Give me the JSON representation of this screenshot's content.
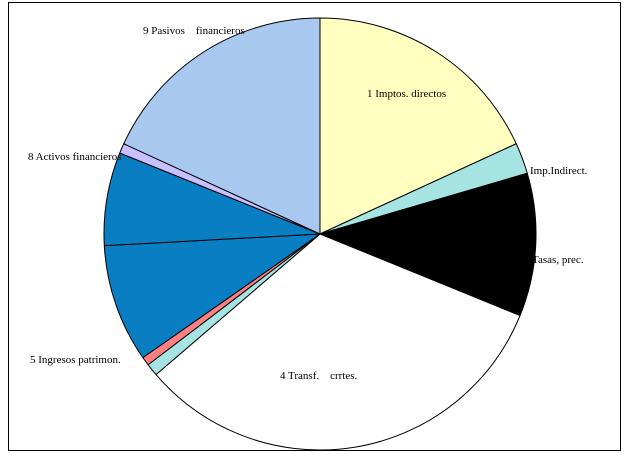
{
  "chart_data": {
    "type": "pie",
    "title": "",
    "legend": "none",
    "start_angle_deg": 0,
    "direction": "clockwise",
    "slices": [
      {
        "label": "1 Imptos. directos",
        "value": 19.5,
        "color": "#ffffc0"
      },
      {
        "label": "Imp.Indirect.",
        "value": 2.5,
        "color": "#a6e3e3"
      },
      {
        "label": "3 Tasas, prec.",
        "value": 11.5,
        "color": "#000000"
      },
      {
        "label": "4 Transf.    crrtes.",
        "value": 35.0,
        "color": "#ffffff"
      },
      {
        "label": "",
        "value": 1.0,
        "color": "#a6e3e3"
      },
      {
        "label": "5 Ingresos patrimon.",
        "value": 0.7,
        "color": "#ff8080"
      },
      {
        "label": "",
        "value": 9.5,
        "color": "#0a7ec2"
      },
      {
        "label": "",
        "value": 7.5,
        "color": "#0a7ec2"
      },
      {
        "label": "8 Activos financieros",
        "value": 0.8,
        "color": "#c8c0ff"
      },
      {
        "label": "9 Pasivos    financieros",
        "value": 19.5,
        "color": "#a8c8f0"
      }
    ],
    "labels": [
      {
        "text": "1 Imptos. directos",
        "key": "l1"
      },
      {
        "text": "Imp.Indirect.",
        "key": "l2"
      },
      {
        "text": "3 Tasas, prec.",
        "key": "l3"
      },
      {
        "text": "4 Transf.    crrtes.",
        "key": "l4"
      },
      {
        "text": "5 Ingresos patrimon.",
        "key": "l5"
      },
      {
        "text": "8 Activos financieros",
        "key": "l8"
      },
      {
        "text": "9 Pasivos    financieros",
        "key": "l9"
      }
    ]
  }
}
